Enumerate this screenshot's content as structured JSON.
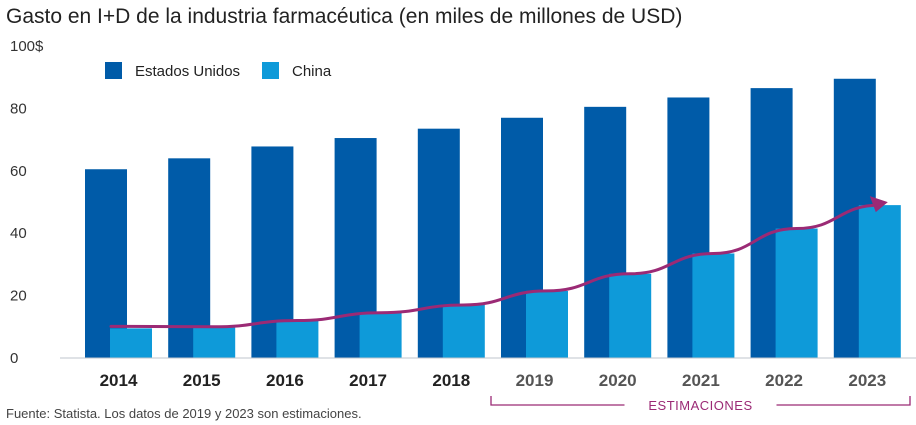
{
  "chart_data": {
    "type": "bar",
    "title": "Gasto en I+D de la industria farmacéutica (en miles de millones de USD)",
    "categories": [
      "2014",
      "2015",
      "2016",
      "2017",
      "2018",
      "2019",
      "2020",
      "2021",
      "2022",
      "2023"
    ],
    "series": [
      {
        "name": "Estados Unidos",
        "color": "#005ba8",
        "values": [
          60.5,
          64,
          67.8,
          70.5,
          73.5,
          77,
          80.5,
          83.5,
          86.5,
          89.5
        ]
      },
      {
        "name": "China",
        "color": "#0e9ad9",
        "values": [
          9.5,
          10,
          12,
          14.5,
          17,
          21.5,
          27,
          33.5,
          41.5,
          49
        ]
      }
    ],
    "y_tick_labels": [
      "0",
      "20",
      "40",
      "60",
      "80",
      "100$"
    ],
    "ylim": [
      0,
      100
    ],
    "grid": false,
    "legend_position": "top-left",
    "trend_arrow": {
      "color": "#9b2a75",
      "from_category": "2014",
      "to_category": "2023",
      "series": "China"
    },
    "estimate_range": {
      "label": "ESTIMACIONES",
      "from": "2019",
      "to": "2023",
      "color": "#9b2a75"
    },
    "estimated_label_color": "#555555",
    "actual_label_color": "#222222",
    "source": "Fuente: Statista. Los datos de 2019 y 2023 son estimaciones."
  }
}
